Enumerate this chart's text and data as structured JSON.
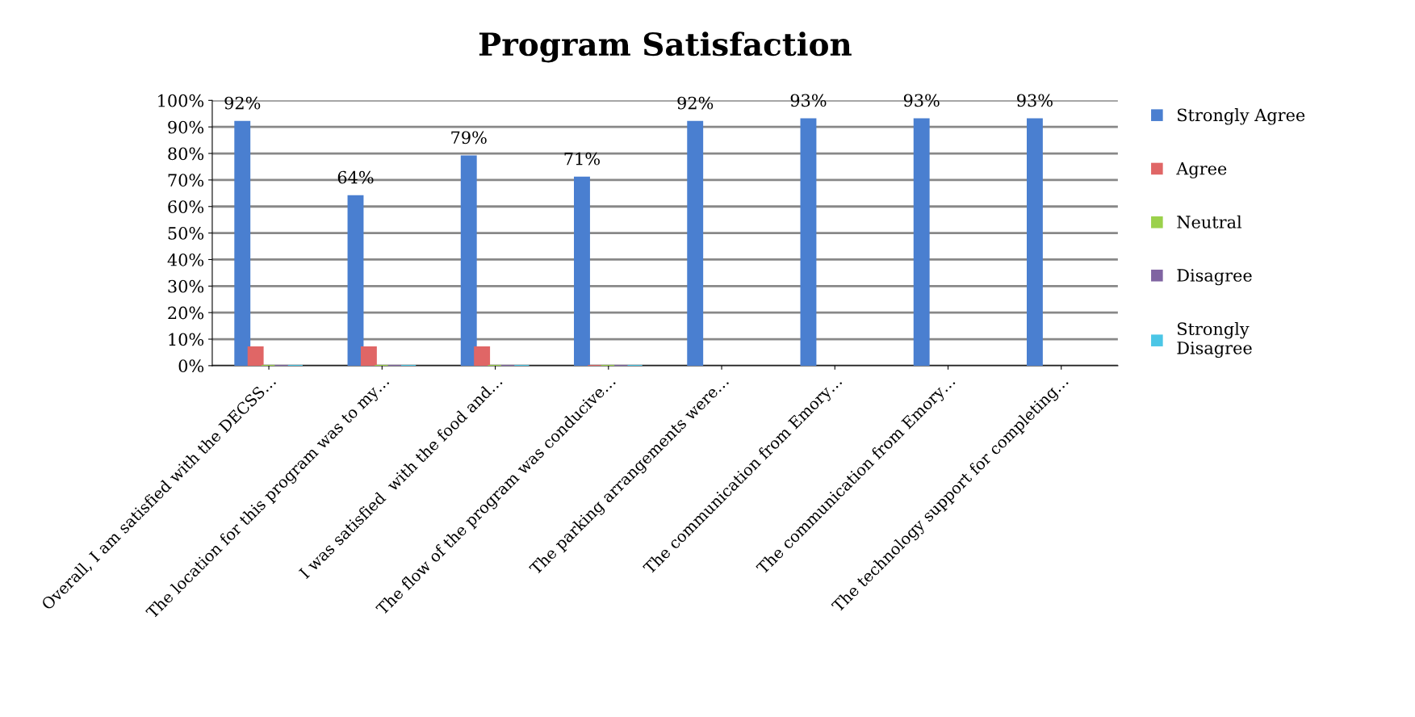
{
  "chart_data": {
    "type": "bar",
    "title": "Program Satisfaction",
    "categories": [
      "Overall, I am satisfied with the DECSS…",
      "The location for this program was to my…",
      "I was satisfied  with the food and…",
      "The flow of the program was conducive…",
      "The parking arrangements were…",
      "The communication from Emory…",
      "The communication from Emory…",
      "The technology support for completing…"
    ],
    "series": [
      {
        "name": "Strongly Agree",
        "color": "#4a7fd0",
        "values": [
          92,
          64,
          79,
          71,
          92,
          93,
          93,
          93
        ],
        "value_labels": [
          "92%",
          "64%",
          "79%",
          "71%",
          "92%",
          "93%",
          "93%",
          "93%"
        ]
      },
      {
        "name": "Agree",
        "color": "#e06666",
        "values": [
          7,
          7,
          7,
          0,
          null,
          null,
          null,
          null
        ]
      },
      {
        "name": "Neutral",
        "color": "#9bd14b",
        "values": [
          0,
          0,
          0,
          0,
          null,
          null,
          null,
          null
        ]
      },
      {
        "name": "Disagree",
        "color": "#8064a2",
        "values": [
          0,
          0,
          0,
          0,
          null,
          null,
          null,
          null
        ]
      },
      {
        "name": "Strongly\nDisagree",
        "color": "#4bc6e6",
        "values": [
          0,
          0,
          0,
          0,
          null,
          null,
          null,
          null
        ]
      }
    ],
    "ylim": [
      0,
      100
    ],
    "yticks": [
      {
        "value": 0,
        "label": "0%"
      },
      {
        "value": 10,
        "label": "10%"
      },
      {
        "value": 20,
        "label": "20%"
      },
      {
        "value": 30,
        "label": "30%"
      },
      {
        "value": 40,
        "label": "40%"
      },
      {
        "value": 50,
        "label": "50%"
      },
      {
        "value": 60,
        "label": "60%"
      },
      {
        "value": 70,
        "label": "70%"
      },
      {
        "value": 80,
        "label": "80%"
      },
      {
        "value": 90,
        "label": "90%"
      },
      {
        "value": 100,
        "label": "100%"
      }
    ],
    "grid": "y",
    "legend": "right"
  }
}
